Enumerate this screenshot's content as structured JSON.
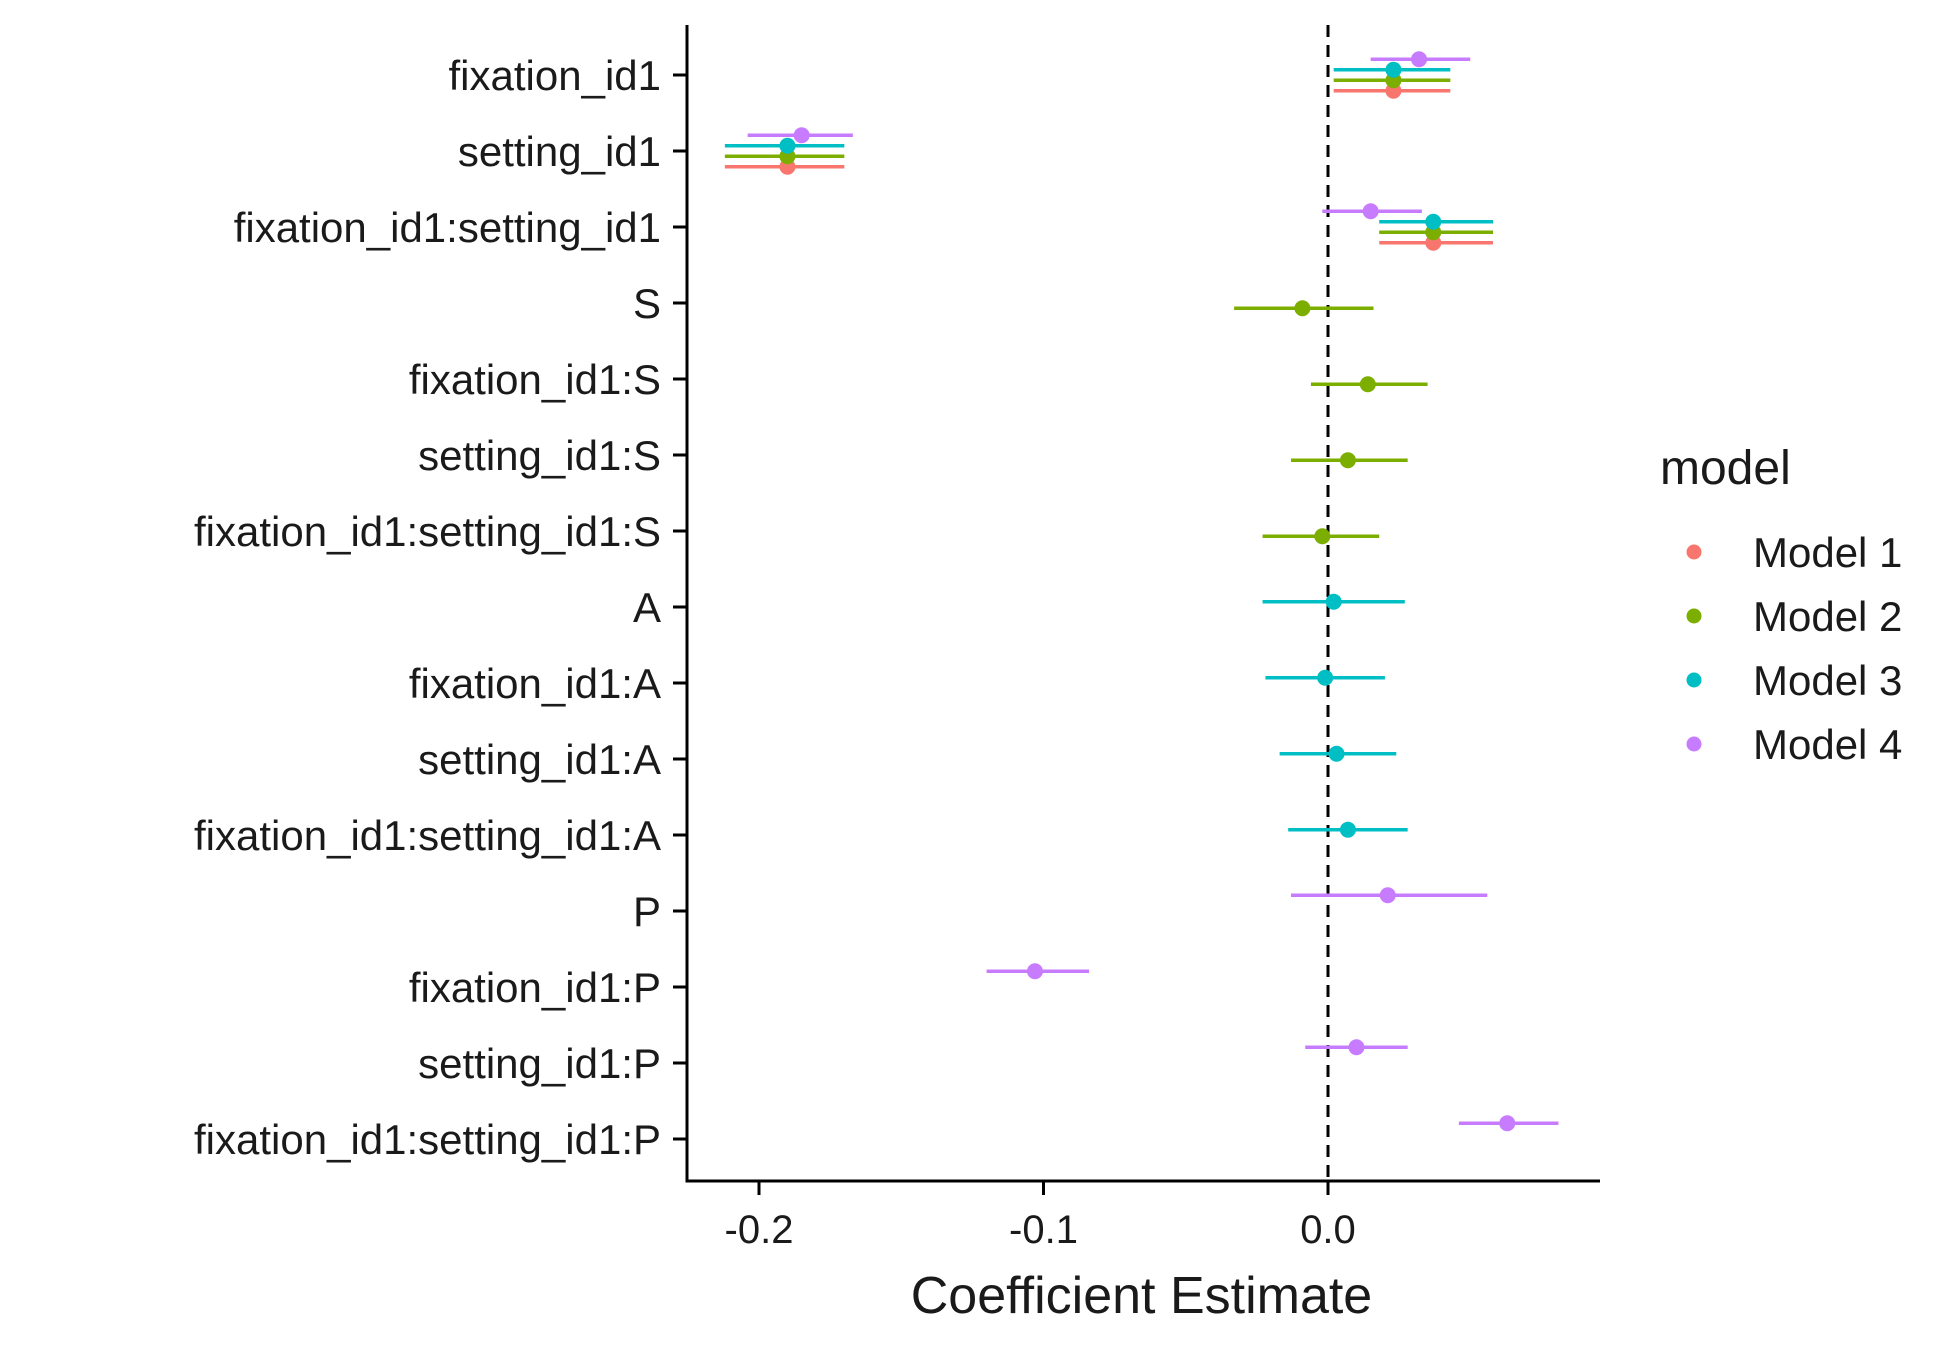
{
  "chart_data": {
    "type": "scatter",
    "subtype": "coefficient-plot-with-confidence-intervals",
    "xlabel": "Coefficient Estimate",
    "ylabel": "",
    "xlim": [
      -0.225,
      0.095
    ],
    "xticks": [
      "-0.2",
      "-0.1",
      "0.0"
    ],
    "reference_line": {
      "x": 0.0,
      "style": "dashed"
    },
    "categories": [
      "fixation_id1",
      "setting_id1",
      "fixation_id1:setting_id1",
      "S",
      "fixation_id1:S",
      "setting_id1:S",
      "fixation_id1:setting_id1:S",
      "A",
      "fixation_id1:A",
      "setting_id1:A",
      "fixation_id1:setting_id1:A",
      "P",
      "fixation_id1:P",
      "setting_id1:P",
      "fixation_id1:setting_id1:P"
    ],
    "legend": {
      "title": "model",
      "position": "right"
    },
    "series": [
      {
        "name": "Model 1",
        "color": "#F8766D",
        "points": [
          {
            "term": "fixation_id1",
            "estimate": 0.023,
            "low": 0.002,
            "high": 0.043
          },
          {
            "term": "setting_id1",
            "estimate": -0.19,
            "low": -0.212,
            "high": -0.17
          },
          {
            "term": "fixation_id1:setting_id1",
            "estimate": 0.037,
            "low": 0.018,
            "high": 0.058
          }
        ]
      },
      {
        "name": "Model 2",
        "color": "#7CAE00",
        "points": [
          {
            "term": "fixation_id1",
            "estimate": 0.023,
            "low": 0.002,
            "high": 0.043
          },
          {
            "term": "setting_id1",
            "estimate": -0.19,
            "low": -0.212,
            "high": -0.17
          },
          {
            "term": "fixation_id1:setting_id1",
            "estimate": 0.037,
            "low": 0.018,
            "high": 0.058
          },
          {
            "term": "S",
            "estimate": -0.009,
            "low": -0.033,
            "high": 0.016
          },
          {
            "term": "fixation_id1:S",
            "estimate": 0.014,
            "low": -0.006,
            "high": 0.035
          },
          {
            "term": "setting_id1:S",
            "estimate": 0.007,
            "low": -0.013,
            "high": 0.028
          },
          {
            "term": "fixation_id1:setting_id1:S",
            "estimate": -0.002,
            "low": -0.023,
            "high": 0.018
          }
        ]
      },
      {
        "name": "Model 3",
        "color": "#00BFC4",
        "points": [
          {
            "term": "fixation_id1",
            "estimate": 0.023,
            "low": 0.002,
            "high": 0.043
          },
          {
            "term": "setting_id1",
            "estimate": -0.19,
            "low": -0.212,
            "high": -0.17
          },
          {
            "term": "fixation_id1:setting_id1",
            "estimate": 0.037,
            "low": 0.018,
            "high": 0.058
          },
          {
            "term": "A",
            "estimate": 0.002,
            "low": -0.023,
            "high": 0.027
          },
          {
            "term": "fixation_id1:A",
            "estimate": -0.001,
            "low": -0.022,
            "high": 0.02
          },
          {
            "term": "setting_id1:A",
            "estimate": 0.003,
            "low": -0.017,
            "high": 0.024
          },
          {
            "term": "fixation_id1:setting_id1:A",
            "estimate": 0.007,
            "low": -0.014,
            "high": 0.028
          }
        ]
      },
      {
        "name": "Model 4",
        "color": "#C77CFF",
        "points": [
          {
            "term": "fixation_id1",
            "estimate": 0.032,
            "low": 0.015,
            "high": 0.05
          },
          {
            "term": "setting_id1",
            "estimate": -0.185,
            "low": -0.204,
            "high": -0.167
          },
          {
            "term": "fixation_id1:setting_id1",
            "estimate": 0.015,
            "low": -0.002,
            "high": 0.033
          },
          {
            "term": "P",
            "estimate": 0.021,
            "low": -0.013,
            "high": 0.056
          },
          {
            "term": "fixation_id1:P",
            "estimate": -0.103,
            "low": -0.12,
            "high": -0.084
          },
          {
            "term": "setting_id1:P",
            "estimate": 0.01,
            "low": -0.008,
            "high": 0.028
          },
          {
            "term": "fixation_id1:setting_id1:P",
            "estimate": 0.063,
            "low": 0.046,
            "high": 0.081
          }
        ]
      }
    ]
  }
}
